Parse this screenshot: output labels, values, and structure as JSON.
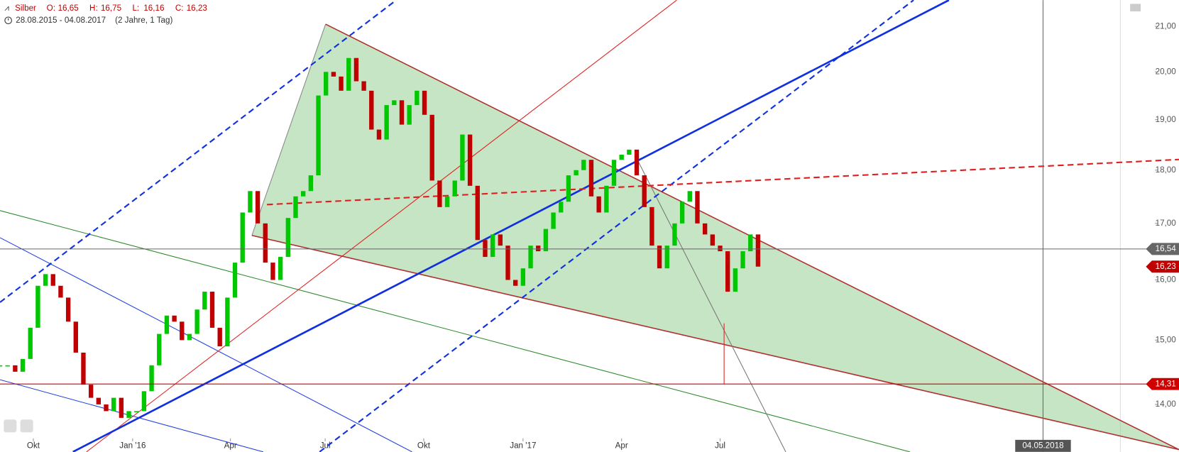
{
  "chart_data": {
    "type": "candlestick",
    "title": "Silber",
    "quote": [
      {
        "label": "O:",
        "value": 16.65,
        "value_label": "16,65"
      },
      {
        "label": "H:",
        "value": 16.75,
        "value_label": "16,75"
      },
      {
        "label": "L:",
        "value": 16.16,
        "value_label": "16,16"
      },
      {
        "label": "C:",
        "value": 16.23,
        "value_label": "16,23"
      }
    ],
    "date_range": "28.08.2015 - 04.08.2017",
    "period": "(2 Jahre, 1 Tag)",
    "x": [
      0,
      1,
      2,
      3,
      4,
      5,
      6,
      7,
      8,
      9,
      10,
      11,
      12,
      13,
      14,
      15,
      16,
      17,
      18,
      19,
      20,
      21,
      22,
      23,
      24,
      25,
      26,
      27,
      28,
      29,
      30,
      31,
      32,
      33,
      34,
      35,
      36,
      37,
      38,
      39,
      40,
      41,
      42,
      43,
      44,
      45,
      46,
      47,
      48,
      49,
      50,
      51,
      52,
      53,
      54,
      55,
      56,
      57,
      58,
      59,
      60,
      61,
      62,
      63,
      64,
      65,
      66,
      67,
      68,
      69,
      70,
      71,
      72,
      73,
      74,
      75,
      76,
      77,
      78,
      79,
      80,
      81,
      82,
      83,
      84,
      85,
      86,
      87,
      88,
      89,
      90,
      91,
      92,
      93,
      94,
      95,
      96,
      97,
      98,
      99,
      100
    ],
    "values": [
      14.6,
      14.6,
      14.5,
      14.7,
      15.2,
      15.9,
      16.1,
      15.9,
      15.7,
      15.3,
      14.8,
      14.3,
      14.1,
      14.0,
      13.9,
      14.1,
      13.8,
      13.9,
      13.9,
      14.2,
      14.6,
      15.1,
      15.4,
      15.3,
      15.0,
      15.1,
      15.5,
      15.8,
      15.2,
      14.9,
      15.7,
      16.3,
      17.2,
      17.6,
      17.0,
      16.3,
      16.0,
      16.4,
      17.1,
      17.5,
      17.6,
      17.9,
      19.5,
      20.0,
      19.9,
      19.6,
      20.3,
      19.8,
      19.6,
      18.8,
      18.6,
      19.3,
      19.4,
      18.9,
      19.3,
      19.6,
      19.1,
      17.8,
      17.3,
      17.5,
      17.8,
      18.7,
      17.7,
      16.7,
      16.4,
      16.8,
      16.6,
      16.0,
      15.9,
      16.2,
      16.6,
      16.5,
      16.9,
      17.2,
      17.4,
      17.9,
      18.0,
      18.2,
      17.5,
      17.2,
      17.7,
      18.2,
      18.3,
      18.4,
      17.9,
      17.3,
      16.6,
      16.2,
      16.6,
      17.0,
      17.4,
      17.6,
      17.0,
      16.8,
      16.6,
      16.5,
      15.8,
      16.2,
      16.5,
      16.8,
      16.23
    ],
    "up_color": "#00c800",
    "down_color": "#c00000",
    "xlim": [
      0,
      147.8
    ],
    "xticks": [
      {
        "value": 4.4,
        "label": "Okt"
      },
      {
        "value": 17.5,
        "label": "Jan '16"
      },
      {
        "value": 30.4,
        "label": "Apr"
      },
      {
        "value": 42.9,
        "label": "Jul"
      },
      {
        "value": 55.9,
        "label": "Okt"
      },
      {
        "value": 69,
        "label": "Jan '17"
      },
      {
        "value": 82,
        "label": "Apr"
      },
      {
        "value": 95,
        "label": "Jul"
      }
    ],
    "ylim": [
      13.5,
      21.6
    ],
    "log_scale": true,
    "yticks": [
      {
        "value": 14,
        "label": "14,00"
      },
      {
        "value": 15,
        "label": "15,00"
      },
      {
        "value": 16,
        "label": "16,00"
      },
      {
        "value": 17,
        "label": "17,00"
      },
      {
        "value": 18,
        "label": "18,00"
      },
      {
        "value": 19,
        "label": "19,00"
      },
      {
        "value": 20,
        "label": "20,00"
      },
      {
        "value": 21,
        "label": "21,00"
      }
    ],
    "crosshair": {
      "x": 137.6,
      "x_label": "04.05.2018",
      "y": 16.54,
      "y_label": "16,54",
      "color": "#666666"
    },
    "levels": [
      {
        "value": 16.23,
        "label": "16,23",
        "color": "#c00000",
        "line": false
      },
      {
        "value": 14.31,
        "label": "14,31",
        "color": "#d00000",
        "line": true
      }
    ]
  }
}
